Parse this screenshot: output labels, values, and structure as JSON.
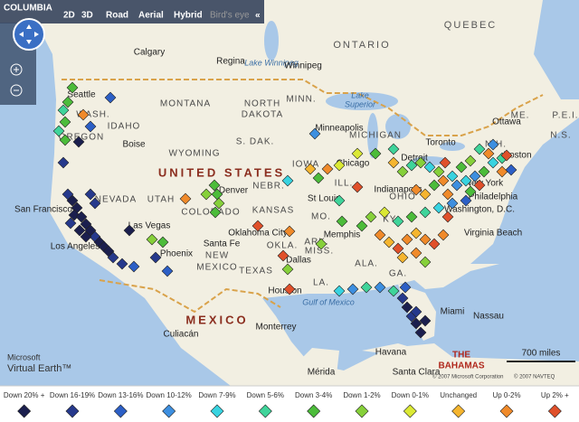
{
  "toolbar": {
    "region": "COLUMBIA",
    "views": [
      "2D",
      "3D"
    ],
    "styles": [
      "Road",
      "Aerial",
      "Hybrid",
      "Bird's eye"
    ],
    "collapse": "«"
  },
  "map_labels": [
    "Lake Winnipeg",
    "ONTARIO",
    "QUEBEC",
    "Calgary",
    "Regina",
    "Winnipeg",
    "MONTANA",
    "NORTH",
    "DAKOTA",
    "MINN.",
    "Lake",
    "Superior",
    "Ottawa",
    "ME.",
    "P.E.I.",
    "N.S.",
    "Seattle",
    "WASH.",
    "IDAHO",
    "Boise",
    "OREGON",
    "WYOMING",
    "S. DAK.",
    "Minneapolis",
    "MICHIGAN",
    "Toronto",
    "N.H.",
    "Boston",
    "UNITED STATES",
    "IOWA",
    "Chicago",
    "Detroit",
    "New York",
    "NEVADA",
    "UTAH",
    "Denver",
    "NEBR.",
    "ILL.",
    "Indianapolis",
    "OHIO",
    "Philadelphia",
    "Washington, D.C.",
    "San Francisco",
    "Las Vegas",
    "COLORADO",
    "KANSAS",
    "St Louis",
    "MO.",
    "KY.",
    "Virginia Beach",
    "Los Angeles",
    "Phoenix",
    "Santa Fe",
    "NEW",
    "MEXICO",
    "Oklahoma City",
    "OKLA.",
    "ARK.",
    "Memphis",
    "Dallas",
    "MISS.",
    "ALA.",
    "GA.",
    "TEXAS",
    "LA.",
    "Houston",
    "Gulf of Mexico",
    "MEXICO",
    "Monterrey",
    "Culiacán",
    "Havana",
    "Nassau",
    "Miami",
    "Mérida",
    "Santa Clara",
    "THE",
    "BAHAMAS"
  ],
  "scale": "700 miles",
  "brand": [
    "Microsoft",
    "Virtual Earth™"
  ],
  "copyright": [
    "© 2007 Microsoft Corporation",
    "© 2007 NAVTEQ"
  ],
  "legend": [
    {
      "label": "Down 20% +",
      "color": "#1b1f4e"
    },
    {
      "label": "Down 16-19%",
      "color": "#26398c"
    },
    {
      "label": "Down 13-16%",
      "color": "#2c5fc6"
    },
    {
      "label": "Down 10-12%",
      "color": "#3d8fe0"
    },
    {
      "label": "Down 7-9%",
      "color": "#38d3e0"
    },
    {
      "label": "Down 5-6%",
      "color": "#3fd49a"
    },
    {
      "label": "Down 3-4%",
      "color": "#4cbc3a"
    },
    {
      "label": "Down 1-2%",
      "color": "#86d03a"
    },
    {
      "label": "Down 0-1%",
      "color": "#dbe934"
    },
    {
      "label": "Unchanged",
      "color": "#f5b52f"
    },
    {
      "label": "Up 0-2%",
      "color": "#f08a2a"
    },
    {
      "label": "Up 2% +",
      "color": "#e0502a"
    }
  ]
}
